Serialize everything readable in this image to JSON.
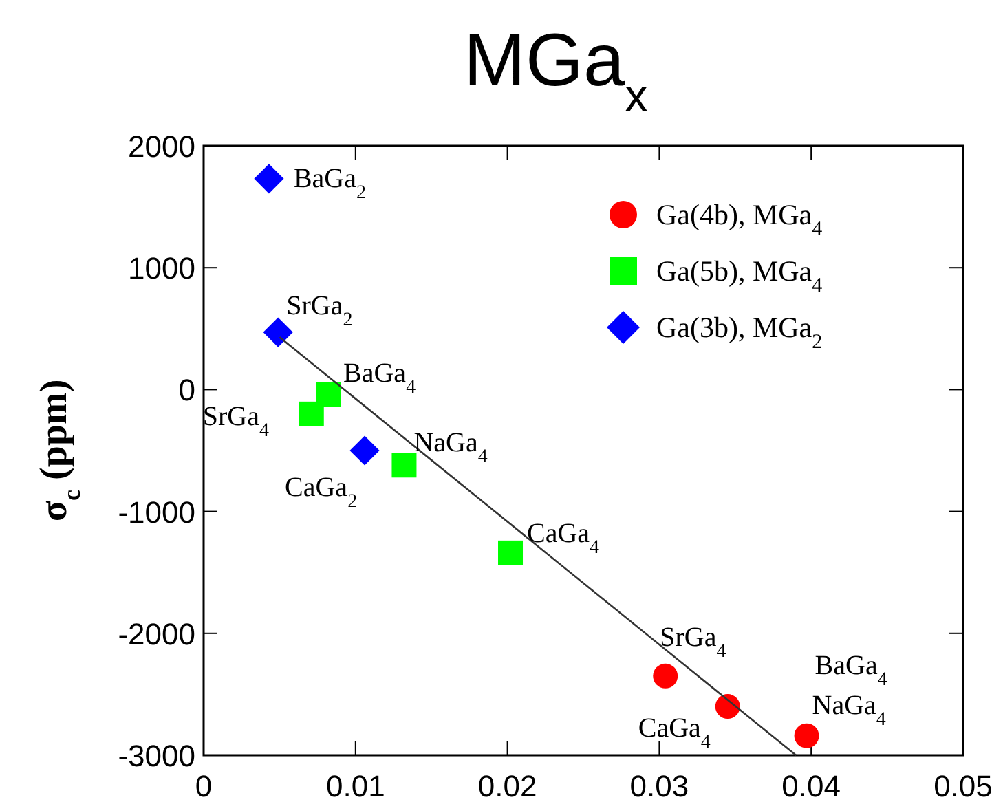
{
  "chart_data": {
    "type": "scatter",
    "title": "MGa$_{x}$",
    "ylabel": "σ$_{c}$ (ppm)",
    "xlim": [
      0,
      0.05
    ],
    "xticks": [
      0,
      0.01,
      0.02,
      0.03,
      0.04,
      0.05
    ],
    "ylim": [
      -3000,
      2000
    ],
    "yticks": [
      -3000,
      -2000,
      -1000,
      0,
      1000,
      2000
    ],
    "grid": false,
    "legend": "top right",
    "series": [
      {
        "name": "Ga(4b), MGa$_{4}$",
        "marker": "circle",
        "color": "#ff0000",
        "x": [
          0.0304,
          0.0345,
          0.0397
        ],
        "values": [
          -2350,
          -2600,
          -2840
        ]
      },
      {
        "name": "Ga(5b), MGa$_{4}$",
        "marker": "square",
        "color": "#00ff00",
        "x": [
          0.0071,
          0.0082,
          0.0132,
          0.0202
        ],
        "values": [
          -200,
          -40,
          -620,
          -1340
        ]
      },
      {
        "name": "Ga(3b), MGa$_{2}$",
        "marker": "diamond",
        "color": "#0000ff",
        "x": [
          0.0043,
          0.0049,
          0.0106
        ],
        "values": [
          1730,
          470,
          -500
        ]
      },
      {
        "type": "line",
        "marker": "none",
        "color": "#333333",
        "x": [
          0.005,
          0.039
        ],
        "values": [
          430,
          -3000
        ]
      }
    ],
    "annotations": [
      {
        "text": "BaGa$_{2}$",
        "x": 0.0043,
        "y": 1730
      },
      {
        "text": "SrGa$_{2}$",
        "x": 0.0049,
        "y": 470
      },
      {
        "text": "BaGa$_{4}$",
        "x": 0.0082,
        "y": -40
      },
      {
        "text": "SrGa$_{4}$",
        "x": 0.0071,
        "y": -200
      },
      {
        "text": "NaGa$_{4}$",
        "x": 0.0132,
        "y": -620
      },
      {
        "text": "CaGa$_{2}$",
        "x": 0.0106,
        "y": -500
      },
      {
        "text": "CaGa$_{4}$",
        "x": 0.0202,
        "y": -1340
      },
      {
        "text": "SrGa$_{4}$",
        "x": 0.0304,
        "y": -2350
      },
      {
        "text": "CaGa$_{4}$",
        "x": 0.0345,
        "y": -2600
      },
      {
        "text": "BaGa$_{4}$",
        "x": 0.0397,
        "y": -2840
      },
      {
        "text": "NaGa$_{4}$",
        "x": 0.0397,
        "y": -2840
      }
    ]
  }
}
